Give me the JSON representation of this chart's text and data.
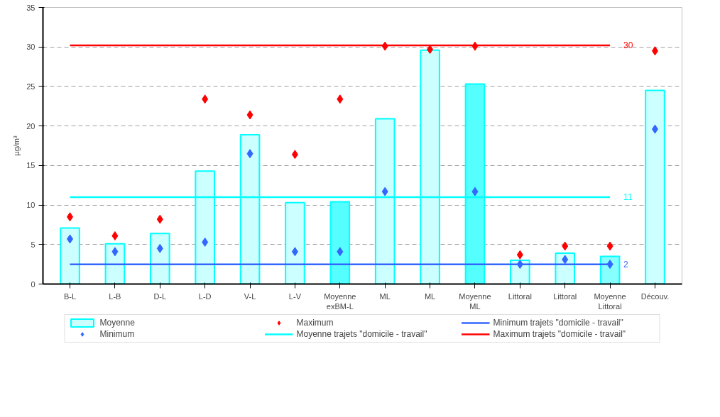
{
  "chart_data": {
    "type": "bar",
    "ylabel": "µg/m³",
    "categories": [
      "B-L",
      "L-B",
      "D-L",
      "L-D",
      "V-L",
      "L-V",
      "Moyenne exBM-L",
      "ML",
      "ML",
      "Moyenne ML",
      "Littoral",
      "Littoral",
      "Moyenne Littoral",
      "Découv."
    ],
    "ylim": [
      0,
      35
    ],
    "yticks": [
      0,
      5,
      10,
      15,
      20,
      25,
      30,
      35
    ],
    "grid": "y",
    "legend": "bottom",
    "marker": "diamond",
    "series": [
      {
        "name": "Moyenne",
        "type": "bar",
        "color": "#00ffff",
        "colors": [
          "#ccffff",
          "#ccffff",
          "#ccffff",
          "#ccffff",
          "#ccffff",
          "#ccffff",
          "#55ffff",
          "#ccffff",
          "#ccffff",
          "#55ffff",
          "#ccffff",
          "#ccffff",
          "#88ffff",
          "#ccffff"
        ],
        "values": [
          7.1,
          5.1,
          6.4,
          14.3,
          18.9,
          10.3,
          10.4,
          20.9,
          29.6,
          25.3,
          3.0,
          3.9,
          3.5,
          24.5
        ]
      },
      {
        "name": "Minimum",
        "type": "scatter",
        "color": "#3366ff",
        "values": [
          5.7,
          4.1,
          4.5,
          5.3,
          16.5,
          4.1,
          4.1,
          11.7,
          null,
          11.7,
          2.5,
          3.1,
          2.5,
          19.6
        ]
      },
      {
        "name": "Maximum",
        "type": "scatter",
        "color": "#ff0000",
        "values": [
          8.5,
          6.1,
          8.2,
          23.4,
          21.4,
          16.4,
          23.4,
          30.1,
          29.7,
          30.1,
          3.7,
          4.8,
          4.8,
          29.5
        ]
      },
      {
        "name": "Moyenne trajets \"domicile - travail\"",
        "type": "line",
        "marker": "none",
        "color": "#00ffff",
        "values": [
          11,
          11,
          11,
          11,
          11,
          11,
          11,
          11,
          11,
          11,
          11,
          11,
          11,
          null
        ]
      },
      {
        "name": "Minimum trajets \"domicile - travail\"",
        "type": "line",
        "marker": "none",
        "color": "#3366ff",
        "values": [
          2.5,
          2.5,
          2.5,
          2.5,
          2.5,
          2.5,
          2.5,
          2.5,
          2.5,
          2.5,
          2.5,
          2.5,
          2.5,
          null
        ]
      },
      {
        "name": "Maximum trajets \"domicile - travail\"",
        "type": "line",
        "marker": "none",
        "color": "#ff0000",
        "values": [
          30.2,
          30.2,
          30.2,
          30.2,
          30.2,
          30.2,
          30.2,
          30.2,
          30.2,
          30.2,
          30.2,
          30.2,
          30.2,
          null
        ]
      }
    ],
    "annotations": [
      {
        "text": "30",
        "x": "Moyenne Littoral",
        "y": 30.2
      },
      {
        "text": "11",
        "x": "Moyenne Littoral",
        "y": 11
      },
      {
        "text": "2",
        "x": "Moyenne Littoral",
        "y": 2.5
      }
    ]
  }
}
